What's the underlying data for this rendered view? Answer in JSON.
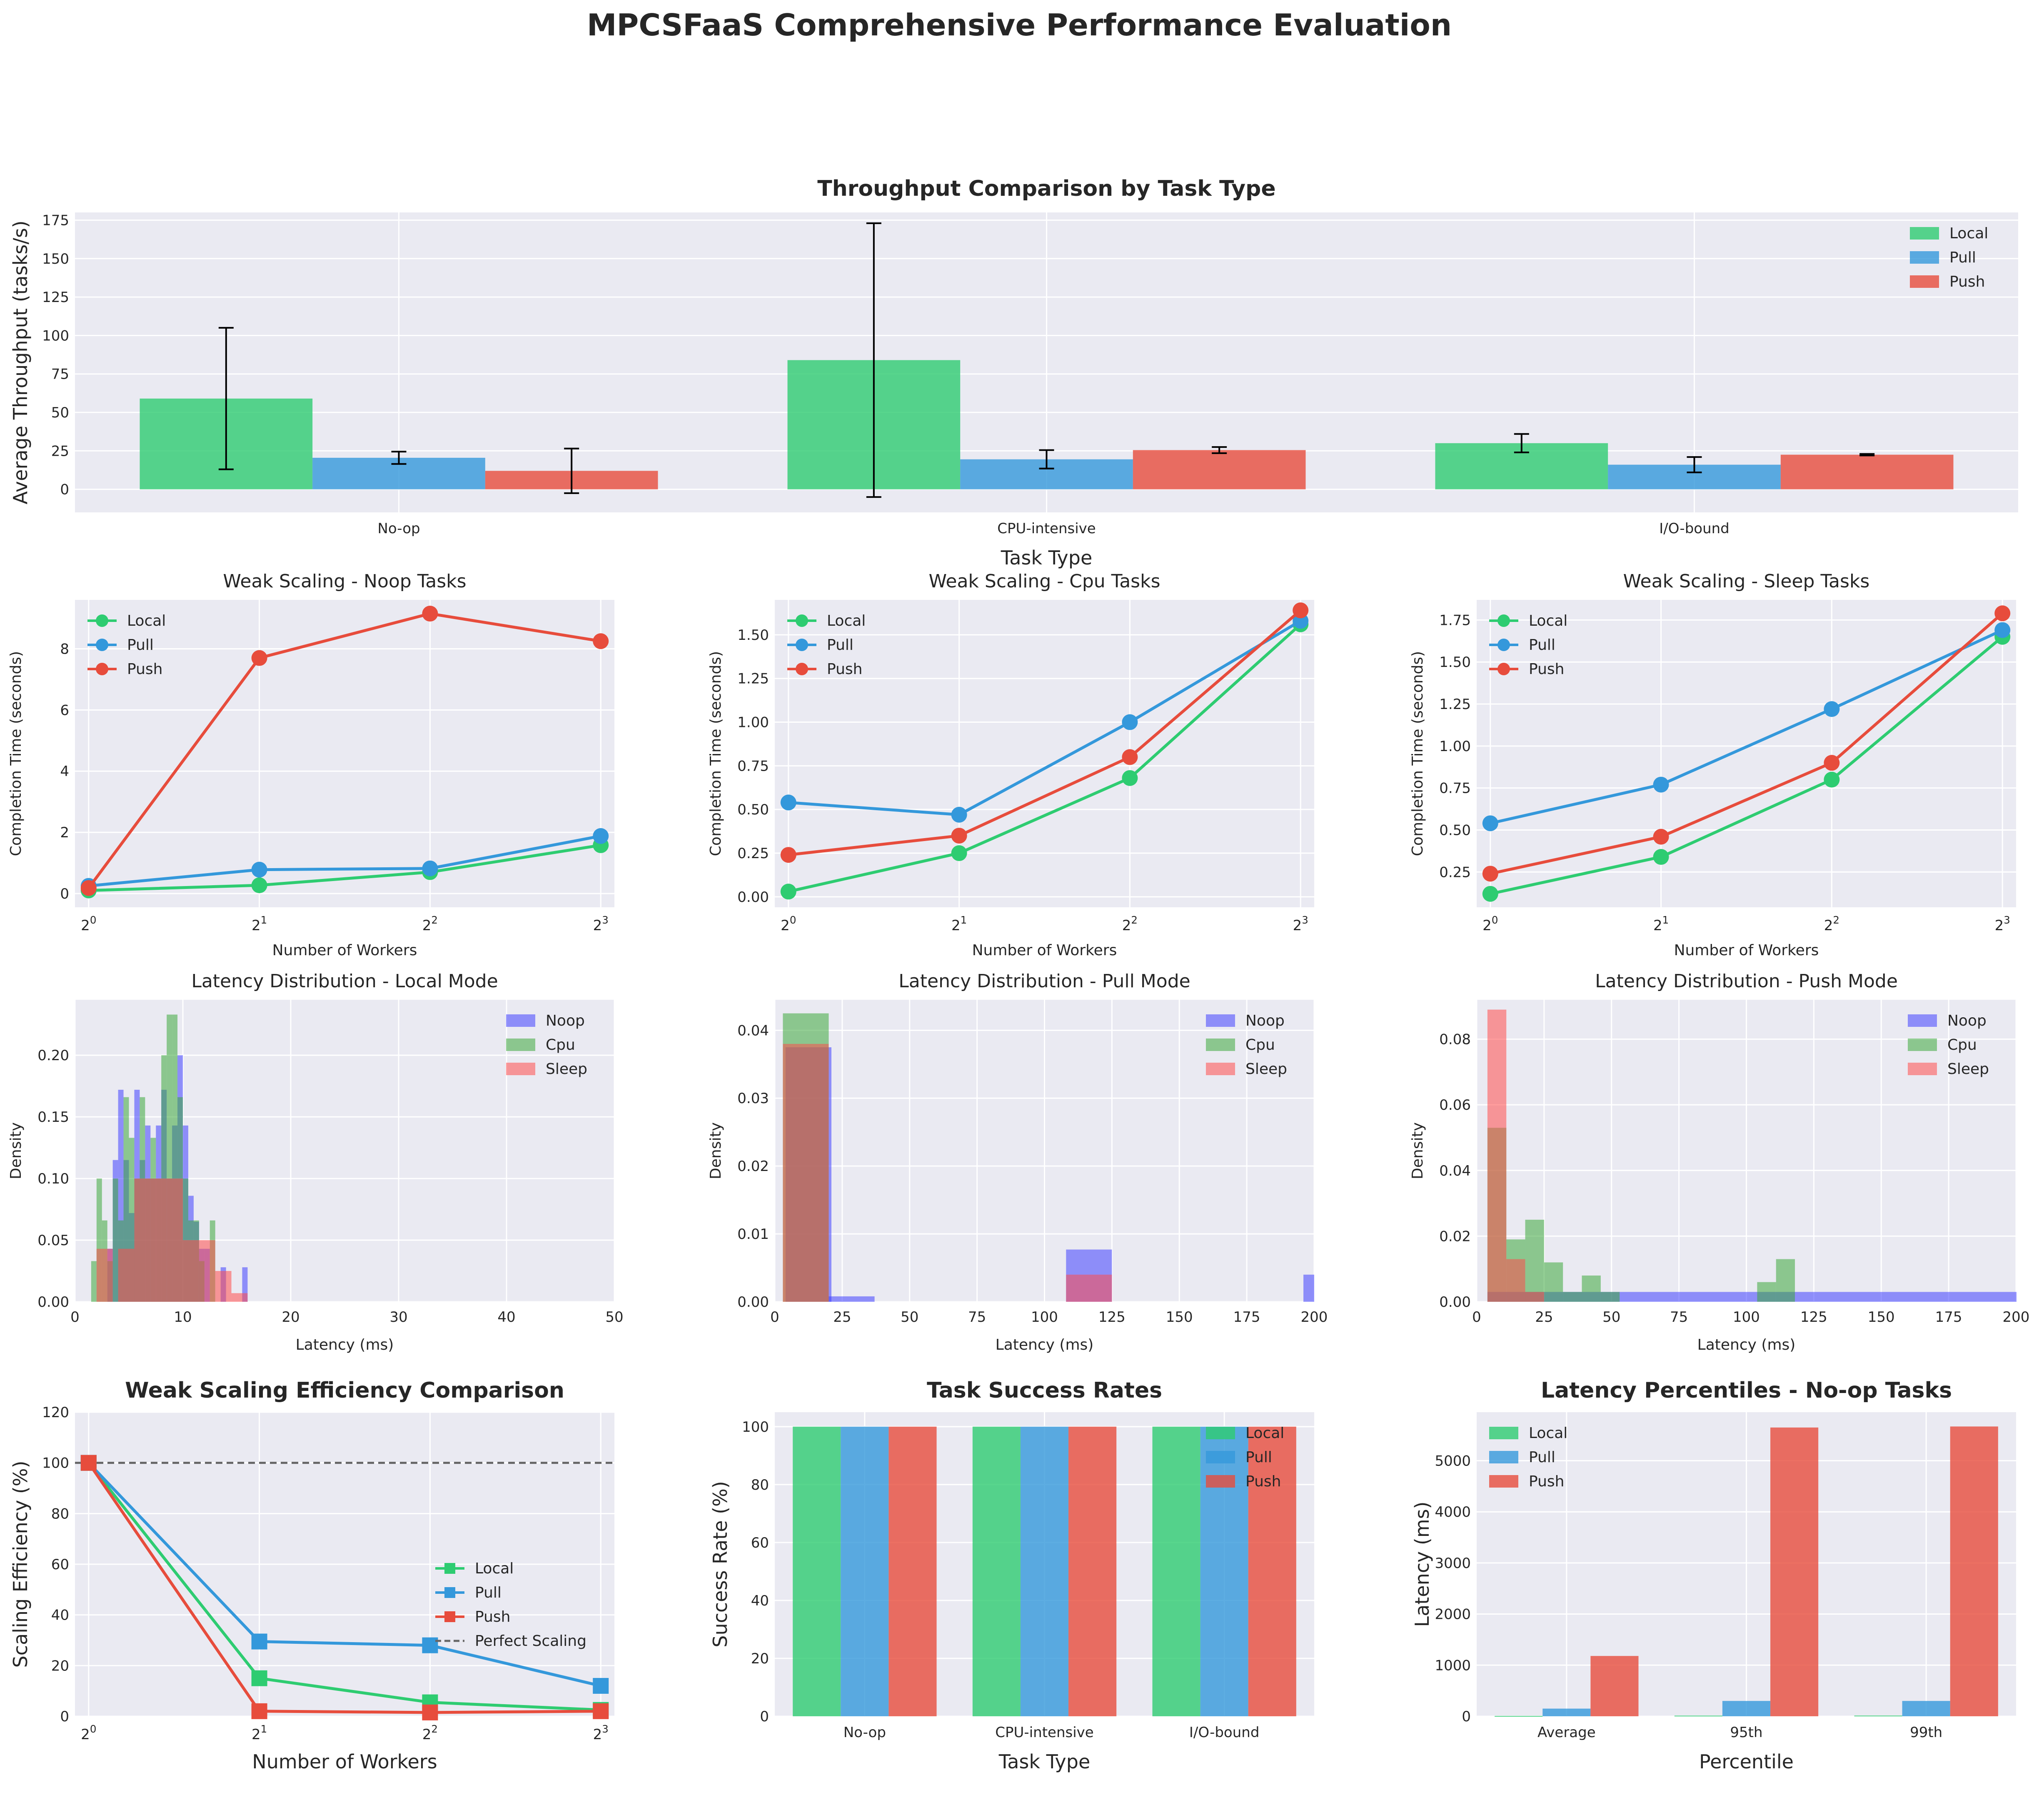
{
  "page": {
    "title": "MPCSFaaS Comprehensive Performance Evaluation"
  },
  "colors": {
    "local": "#2ecc71",
    "pull": "#3498db",
    "push": "#e74c3c",
    "noop": "#4040ff",
    "cpu": "#3da83d",
    "sleep": "#ff4d4d",
    "panel_bg": "#eaeaf2",
    "grid": "#ffffff"
  },
  "chart_data": [
    {
      "id": "throughput",
      "type": "bar",
      "title": "Throughput Comparison by Task Type",
      "xlabel": "Task Type",
      "ylabel": "Average Throughput (tasks/s)",
      "categories": [
        "No-op",
        "CPU-intensive",
        "I/O-bound"
      ],
      "ylim": [
        -15,
        180
      ],
      "yticks": [
        0,
        25,
        50,
        75,
        100,
        125,
        150,
        175
      ],
      "legend": "top-right",
      "series": [
        {
          "name": "Local",
          "color": "#2ecc71",
          "values": [
            59,
            84,
            30
          ],
          "err": [
            46,
            89,
            6
          ]
        },
        {
          "name": "Pull",
          "color": "#3498db",
          "values": [
            20.5,
            19.5,
            16
          ],
          "err": [
            4,
            6,
            5
          ]
        },
        {
          "name": "Push",
          "color": "#e74c3c",
          "values": [
            12,
            25.5,
            22.5
          ],
          "err": [
            14.5,
            2,
            0.5
          ]
        }
      ]
    },
    {
      "id": "weak-noop",
      "type": "line",
      "title": "Weak Scaling - Noop Tasks",
      "xlabel": "Number of Workers",
      "ylabel": "Completion Time (seconds)",
      "x": [
        1,
        2,
        4,
        8
      ],
      "xticks": [
        "2^0",
        "2^1",
        "2^2",
        "2^3"
      ],
      "ylim": [
        -0.45,
        9.6
      ],
      "yticks": [
        0,
        2,
        4,
        6,
        8
      ],
      "legend": "top-left",
      "series": [
        {
          "name": "Local",
          "color": "#2ecc71",
          "values": [
            0.1,
            0.27,
            0.7,
            1.58
          ]
        },
        {
          "name": "Pull",
          "color": "#3498db",
          "values": [
            0.25,
            0.78,
            0.82,
            1.88
          ]
        },
        {
          "name": "Push",
          "color": "#e74c3c",
          "values": [
            0.18,
            7.7,
            9.15,
            8.25
          ]
        }
      ]
    },
    {
      "id": "weak-cpu",
      "type": "line",
      "title": "Weak Scaling - Cpu Tasks",
      "xlabel": "Number of Workers",
      "ylabel": "Completion Time (seconds)",
      "x": [
        1,
        2,
        4,
        8
      ],
      "xticks": [
        "2^0",
        "2^1",
        "2^2",
        "2^3"
      ],
      "ylim": [
        -0.06,
        1.7
      ],
      "yticks": [
        "0.00",
        "0.25",
        "0.50",
        "0.75",
        "1.00",
        "1.25",
        "1.50"
      ],
      "legend": "top-left",
      "series": [
        {
          "name": "Local",
          "color": "#2ecc71",
          "values": [
            0.03,
            0.25,
            0.68,
            1.56
          ]
        },
        {
          "name": "Pull",
          "color": "#3498db",
          "values": [
            0.54,
            0.47,
            1.0,
            1.58
          ]
        },
        {
          "name": "Push",
          "color": "#e74c3c",
          "values": [
            0.24,
            0.35,
            0.8,
            1.64
          ]
        }
      ]
    },
    {
      "id": "weak-sleep",
      "type": "line",
      "title": "Weak Scaling - Sleep Tasks",
      "xlabel": "Number of Workers",
      "ylabel": "Completion Time (seconds)",
      "x": [
        1,
        2,
        4,
        8
      ],
      "xticks": [
        "2^0",
        "2^1",
        "2^2",
        "2^3"
      ],
      "ylim": [
        0.04,
        1.87
      ],
      "yticks": [
        "0.25",
        "0.50",
        "0.75",
        "1.00",
        "1.25",
        "1.50",
        "1.75"
      ],
      "legend": "top-left",
      "series": [
        {
          "name": "Local",
          "color": "#2ecc71",
          "values": [
            0.12,
            0.34,
            0.8,
            1.65
          ]
        },
        {
          "name": "Pull",
          "color": "#3498db",
          "values": [
            0.54,
            0.77,
            1.22,
            1.69
          ]
        },
        {
          "name": "Push",
          "color": "#e74c3c",
          "values": [
            0.24,
            0.46,
            0.9,
            1.79
          ]
        }
      ]
    },
    {
      "id": "lat-local",
      "type": "histogram",
      "title": "Latency Distribution - Local Mode",
      "xlabel": "Latency (ms)",
      "ylabel": "Density",
      "xlim": [
        0,
        50
      ],
      "xticks": [
        0,
        10,
        20,
        30,
        40,
        50
      ],
      "ylim": [
        0,
        0.245
      ],
      "yticks": [
        "0.00",
        "0.05",
        "0.10",
        "0.15",
        "0.20"
      ],
      "legend": "top-right",
      "series": [
        {
          "name": "Noop",
          "color": "#4040ff",
          "bins": [
            [
              3,
              0.043
            ],
            [
              3.5,
              0.115
            ],
            [
              4,
              0.172
            ],
            [
              4.5,
              0.115
            ],
            [
              5,
              0.072
            ],
            [
              5.5,
              0.172
            ],
            [
              6,
              0.115
            ],
            [
              6.5,
              0.143
            ],
            [
              7,
              0.1
            ],
            [
              7.5,
              0.143
            ],
            [
              8,
              0.172
            ],
            [
              8.5,
              0.1
            ],
            [
              9,
              0.143
            ],
            [
              9.5,
              0.2
            ],
            [
              10,
              0.143
            ],
            [
              10.5,
              0.086
            ],
            [
              11,
              0.065
            ],
            [
              11.5,
              0.043
            ],
            [
              12,
              0.043
            ],
            [
              13.5,
              0.028
            ],
            [
              15.5,
              0.028
            ]
          ],
          "width": 0.5
        },
        {
          "name": "Cpu",
          "color": "#3da83d",
          "bins": [
            [
              1.5,
              0.033
            ],
            [
              2,
              0.1
            ],
            [
              2.5,
              0.066
            ],
            [
              3,
              0.033
            ],
            [
              3.5,
              0.1
            ],
            [
              4,
              0.066
            ],
            [
              4.5,
              0.166
            ],
            [
              5,
              0.133
            ],
            [
              5.5,
              0.1
            ],
            [
              6,
              0.166
            ],
            [
              6.5,
              0.1
            ],
            [
              7,
              0.133
            ],
            [
              7.5,
              0.1
            ],
            [
              8,
              0.2
            ],
            [
              8.5,
              0.233
            ],
            [
              9,
              0.233
            ],
            [
              9.5,
              0.166
            ],
            [
              10,
              0.1
            ],
            [
              10.5,
              0.066
            ],
            [
              11,
              0.066
            ],
            [
              11.5,
              0.033
            ],
            [
              12.5,
              0.066
            ]
          ],
          "width": 0.5
        },
        {
          "name": "Sleep",
          "color": "#ff4d4d",
          "bins": [
            [
              2,
              0.043
            ],
            [
              4,
              0.043
            ],
            [
              5.5,
              0.1
            ],
            [
              7,
              0.1
            ],
            [
              8.5,
              0.1
            ],
            [
              10,
              0.05
            ],
            [
              11.5,
              0.05
            ],
            [
              13,
              0.025
            ],
            [
              14.5,
              0.007
            ]
          ],
          "width": 1.5
        }
      ]
    },
    {
      "id": "lat-pull",
      "type": "histogram",
      "title": "Latency Distribution - Pull Mode",
      "xlabel": "Latency (ms)",
      "ylabel": "Density",
      "xlim": [
        0,
        200
      ],
      "xticks": [
        0,
        25,
        50,
        75,
        100,
        125,
        150,
        175,
        200
      ],
      "ylim": [
        0,
        0.0445
      ],
      "yticks": [
        "0.00",
        "0.01",
        "0.02",
        "0.03",
        "0.04"
      ],
      "legend": "top-right",
      "series": [
        {
          "name": "Noop",
          "color": "#4040ff",
          "bins": [
            [
              4,
              0.0375
            ],
            [
              20,
              0.0008
            ],
            [
              108,
              0.0077
            ],
            [
              196,
              0.004
            ]
          ],
          "width": 17
        },
        {
          "name": "Cpu",
          "color": "#3da83d",
          "bins": [
            [
              3,
              0.0425
            ]
          ],
          "width": 17
        },
        {
          "name": "Sleep",
          "color": "#ff4d4d",
          "bins": [
            [
              3,
              0.038
            ],
            [
              108,
              0.004
            ]
          ],
          "width": 17
        }
      ]
    },
    {
      "id": "lat-push",
      "type": "histogram",
      "title": "Latency Distribution - Push Mode",
      "xlabel": "Latency (ms)",
      "ylabel": "Density",
      "xlim": [
        0,
        200
      ],
      "xticks": [
        0,
        25,
        50,
        75,
        100,
        125,
        150,
        175,
        200
      ],
      "ylim": [
        0,
        0.092
      ],
      "yticks": [
        "0.00",
        "0.02",
        "0.04",
        "0.06",
        "0.08"
      ],
      "legend": "top-right",
      "series": [
        {
          "name": "Noop",
          "color": "#4040ff",
          "bins": [
            [
              4,
              0.003
            ],
            [
              200,
              0.003
            ]
          ],
          "width": 196
        },
        {
          "name": "Cpu",
          "color": "#3da83d",
          "bins": [
            [
              4,
              0.053
            ],
            [
              11,
              0.019
            ],
            [
              18,
              0.025
            ],
            [
              25,
              0.012
            ],
            [
              32,
              0.003
            ],
            [
              39,
              0.008
            ],
            [
              46,
              0.003
            ],
            [
              104,
              0.006
            ],
            [
              111,
              0.013
            ]
          ],
          "width": 7
        },
        {
          "name": "Sleep",
          "color": "#ff4d4d",
          "bins": [
            [
              4,
              0.089
            ],
            [
              11,
              0.013
            ],
            [
              18,
              0.003
            ]
          ],
          "width": 7
        }
      ]
    },
    {
      "id": "efficiency",
      "type": "line",
      "title": "Weak Scaling Efficiency Comparison",
      "xlabel": "Number of Workers",
      "ylabel": "Scaling Efficiency (%)",
      "x": [
        1,
        2,
        4,
        8
      ],
      "xticks": [
        "2^0",
        "2^1",
        "2^2",
        "2^3"
      ],
      "ylim": [
        0,
        120
      ],
      "yticks": [
        0,
        20,
        40,
        60,
        80,
        100,
        120
      ],
      "legend": "center-right",
      "reference": {
        "name": "Perfect Scaling",
        "value": 100
      },
      "series": [
        {
          "name": "Local",
          "color": "#2ecc71",
          "values": [
            100,
            15,
            5.5,
            2.5
          ]
        },
        {
          "name": "Pull",
          "color": "#3498db",
          "values": [
            100,
            29.5,
            28,
            12
          ]
        },
        {
          "name": "Push",
          "color": "#e74c3c",
          "values": [
            100,
            2,
            1.5,
            2
          ]
        }
      ]
    },
    {
      "id": "success",
      "type": "bar",
      "title": "Task Success Rates",
      "xlabel": "Task Type",
      "ylabel": "Success Rate (%)",
      "categories": [
        "No-op",
        "CPU-intensive",
        "I/O-bound"
      ],
      "ylim": [
        0,
        105
      ],
      "yticks": [
        0,
        20,
        40,
        60,
        80,
        100
      ],
      "legend": "top-right",
      "series": [
        {
          "name": "Local",
          "color": "#2ecc71",
          "values": [
            100,
            100,
            100
          ]
        },
        {
          "name": "Pull",
          "color": "#3498db",
          "values": [
            100,
            100,
            100
          ]
        },
        {
          "name": "Push",
          "color": "#e74c3c",
          "values": [
            100,
            100,
            100
          ]
        }
      ]
    },
    {
      "id": "percentiles",
      "type": "bar",
      "title": "Latency Percentiles - No-op Tasks",
      "xlabel": "Percentile",
      "ylabel": "Latency (ms)",
      "categories": [
        "Average",
        "95th",
        "99th"
      ],
      "ylim": [
        0,
        5950
      ],
      "yticks": [
        0,
        1000,
        2000,
        3000,
        4000,
        5000
      ],
      "legend": "top-left",
      "series": [
        {
          "name": "Local",
          "color": "#2ecc71",
          "values": [
            7,
            13,
            14
          ]
        },
        {
          "name": "Pull",
          "color": "#3498db",
          "values": [
            150,
            300,
            300
          ]
        },
        {
          "name": "Push",
          "color": "#e74c3c",
          "values": [
            1180,
            5650,
            5670
          ]
        }
      ]
    }
  ]
}
